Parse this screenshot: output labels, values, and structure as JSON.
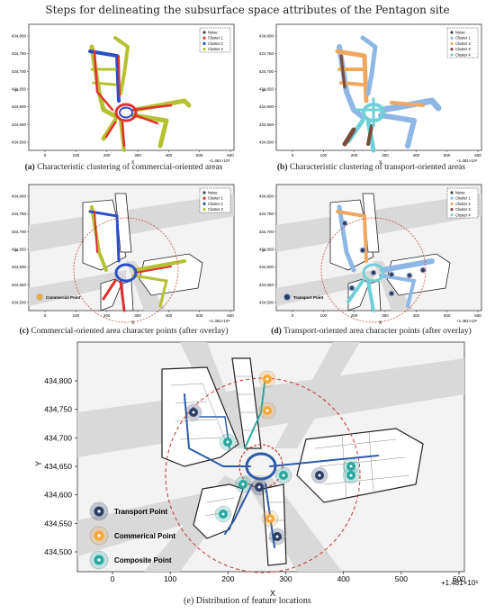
{
  "figure_title": "Steps for delineating the subsurface space attributes of the Pentagon site",
  "panels": {
    "a": {
      "letter": "(a)",
      "caption": "Characteristic clustering of commercial-oriented areas",
      "legend": [
        "Noise",
        "Cluster 1",
        "Cluster 2",
        "Cluster 3"
      ],
      "legend_colors": [
        "#444444",
        "#e03030",
        "#2a4fc8",
        "#b5c130"
      ]
    },
    "b": {
      "letter": "(b)",
      "caption": "Characteristic clustering of transport-oriented areas",
      "legend": [
        "Noise",
        "Cluster 1",
        "Cluster 2",
        "Cluster 3",
        "Cluster 4"
      ],
      "legend_colors": [
        "#444444",
        "#8fb7e6",
        "#f0a860",
        "#7a4b3a",
        "#6fd0d6"
      ]
    },
    "c": {
      "letter": "(c)",
      "caption": "Commercial-oriented area character points (after overlay)",
      "legend": [
        "Noise",
        "Cluster 1",
        "Cluster 2",
        "Cluster 3"
      ],
      "legend_colors": [
        "#444444",
        "#e03030",
        "#2a4fc8",
        "#b5c130"
      ],
      "point_label": "Commercial Point"
    },
    "d": {
      "letter": "(d)",
      "caption": "Transport-oriented area character points (after overlay)",
      "legend": [
        "Noise",
        "Cluster 1",
        "Cluster 2",
        "Cluster 3",
        "Cluster 4"
      ],
      "legend_colors": [
        "#444444",
        "#8fb7e6",
        "#f0a860",
        "#7a4b3a",
        "#6fd0d6"
      ],
      "point_label": "Transport Point"
    },
    "e": {
      "letter": "(e)",
      "caption": "Distribution of feature locations",
      "legend": [
        "Transport Point",
        "Commerical Point",
        "Composite Point"
      ],
      "legend_colors": [
        "#2c3e66",
        "#f2a93b",
        "#2aa8a0"
      ]
    }
  },
  "axes": {
    "small_yticks": [
      "434,800",
      "434,750",
      "434,700",
      "434,650",
      "434,600",
      "434,550",
      "434,500"
    ],
    "small_xticks": [
      "0",
      "100",
      "200",
      "300",
      "400",
      "500",
      "600"
    ],
    "large_yticks": [
      "434,800",
      "434,750",
      "434,700",
      "434,650",
      "434,600",
      "434,550",
      "434,500"
    ],
    "large_xticks": [
      "0",
      "100",
      "200",
      "300",
      "400",
      "500",
      "600"
    ],
    "xlabel": "X",
    "ylabel": "Y",
    "offset": "+1.481×10⁶"
  },
  "colors": {
    "street": "#d9d9d9",
    "map_bg": "#f3f3f3",
    "boundary": "#222222",
    "ring": "#c0392b",
    "network": "#2d5aa8"
  }
}
